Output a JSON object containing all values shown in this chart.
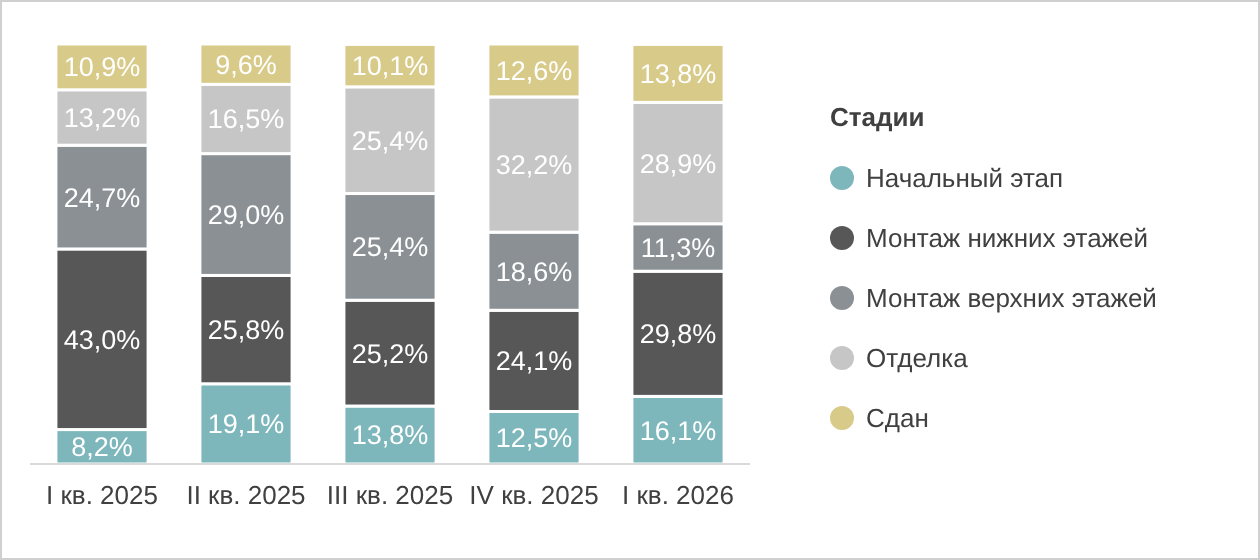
{
  "chart_data": {
    "type": "bar",
    "stacked": true,
    "legend": "right",
    "legend_title": "Стадии",
    "categories": [
      "I кв. 2025",
      "II кв. 2025",
      "III кв. 2025",
      "IV кв. 2025",
      "I кв. 2026"
    ],
    "series": [
      {
        "name": "Начальный этап",
        "color": "#7db7bc",
        "values": [
          8.2,
          19.1,
          13.8,
          12.5,
          16.1
        ],
        "value_labels": [
          "8,2%",
          "19,1%",
          "13,8%",
          "12,5%",
          "16,1%"
        ]
      },
      {
        "name": "Монтаж нижних этажей",
        "color": "#575757",
        "values": [
          43.0,
          25.8,
          25.2,
          24.1,
          29.8
        ],
        "value_labels": [
          "43,0%",
          "25,8%",
          "25,2%",
          "24,1%",
          "29,8%"
        ]
      },
      {
        "name": "Монтаж верхних этажей",
        "color": "#8a9094",
        "values": [
          24.7,
          29.0,
          25.4,
          18.6,
          11.3
        ],
        "value_labels": [
          "24,7%",
          "29,0%",
          "25,4%",
          "18,6%",
          "11,3%"
        ]
      },
      {
        "name": "Отделка",
        "color": "#c6c6c6",
        "values": [
          13.2,
          16.5,
          25.4,
          32.2,
          28.9
        ],
        "value_labels": [
          "13,2%",
          "16,5%",
          "25,4%",
          "32,2%",
          "28,9%"
        ]
      },
      {
        "name": "Сдан",
        "color": "#d8ca88",
        "values": [
          10.9,
          9.6,
          10.1,
          12.6,
          13.8
        ],
        "value_labels": [
          "10,9%",
          "9,6%",
          "10,1%",
          "12,6%",
          "13,8%"
        ]
      }
    ]
  }
}
